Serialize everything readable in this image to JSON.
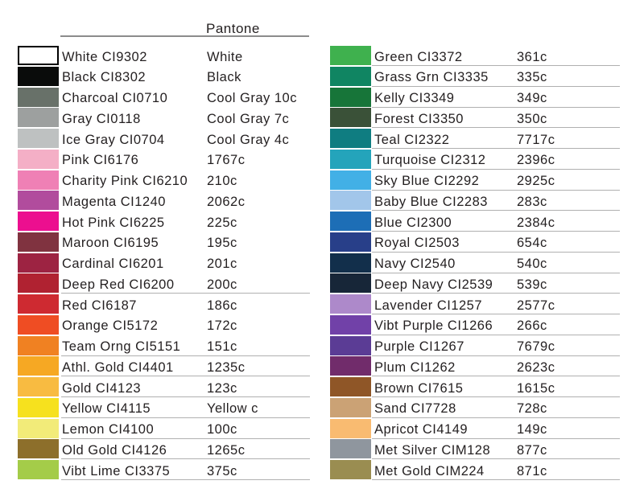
{
  "header": {
    "title": "Pantone"
  },
  "columns": [
    {
      "side": "left",
      "rows": [
        {
          "name": "White",
          "code": "CI9302",
          "pantone": "White",
          "hex": "#ffffff",
          "bordered": true,
          "underline": false
        },
        {
          "name": "Black",
          "code": "CI8302",
          "pantone": "Black",
          "hex": "#0a0c0b",
          "underline": false
        },
        {
          "name": "Charcoal",
          "code": "CI0710",
          "pantone": "Cool Gray 10c",
          "hex": "#687169",
          "underline": false
        },
        {
          "name": "Gray",
          "code": "CI0118",
          "pantone": "Cool Gray 7c",
          "hex": "#9da09f",
          "underline": false
        },
        {
          "name": "Ice Gray",
          "code": "CI0704",
          "pantone": "Cool Gray 4c",
          "hex": "#bec1c1",
          "underline": false
        },
        {
          "name": "Pink",
          "code": "CI6176",
          "pantone": "1767c",
          "hex": "#f4afc6",
          "underline": false
        },
        {
          "name": "Charity Pink",
          "code": "CI6210",
          "pantone": "210c",
          "hex": "#ef80b5",
          "underline": false
        },
        {
          "name": "Magenta",
          "code": "CI1240",
          "pantone": "2062c",
          "hex": "#b14c9d",
          "underline": false
        },
        {
          "name": "Hot Pink",
          "code": "CI6225",
          "pantone": "225c",
          "hex": "#ec0f8f",
          "underline": false
        },
        {
          "name": "Maroon",
          "code": "CI6195",
          "pantone": "195c",
          "hex": "#803340",
          "underline": false
        },
        {
          "name": "Cardinal",
          "code": "CI6201",
          "pantone": "201c",
          "hex": "#9d2342",
          "underline": false
        },
        {
          "name": "Deep Red",
          "code": "CI6200",
          "pantone": "200c",
          "hex": "#b02231",
          "underline": true
        },
        {
          "name": "Red",
          "code": "CI6187",
          "pantone": "186c",
          "hex": "#ce2a31",
          "underline": false
        },
        {
          "name": "Orange",
          "code": "CI5172",
          "pantone": "172c",
          "hex": "#ef4d23",
          "underline": false
        },
        {
          "name": "Team Orng",
          "code": "CI5151",
          "pantone": "151c",
          "hex": "#f08122",
          "underline": true
        },
        {
          "name": "Athl. Gold",
          "code": "CI4401",
          "pantone": "1235c",
          "hex": "#f6a823",
          "underline": true
        },
        {
          "name": "Gold",
          "code": "CI4123",
          "pantone": "123c",
          "hex": "#f8bb41",
          "underline": true
        },
        {
          "name": "Yellow",
          "code": "CI4115",
          "pantone": "Yellow c",
          "hex": "#f6e11e",
          "underline": true
        },
        {
          "name": "Lemon",
          "code": "CI4100",
          "pantone": "100c",
          "hex": "#f2eb79",
          "underline": true
        },
        {
          "name": "Old Gold",
          "code": "CI4126",
          "pantone": "1265c",
          "hex": "#8d6f2b",
          "underline": true
        },
        {
          "name": "Vibt Lime",
          "code": "CI3375",
          "pantone": "375c",
          "hex": "#a4cc49",
          "underline": true
        }
      ]
    },
    {
      "side": "right",
      "rows": [
        {
          "name": "Green",
          "code": "CI3372",
          "pantone": "361c",
          "hex": "#3fb14e",
          "underline": true
        },
        {
          "name": "Grass Grn",
          "code": "CI3335",
          "pantone": "335c",
          "hex": "#108562",
          "underline": true
        },
        {
          "name": "Kelly",
          "code": "CI3349",
          "pantone": "349c",
          "hex": "#177539",
          "underline": true
        },
        {
          "name": "Forest",
          "code": "CI3350",
          "pantone": "350c",
          "hex": "#3a5138",
          "underline": true
        },
        {
          "name": "Teal",
          "code": "CI2322",
          "pantone": "7717c",
          "hex": "#0f7d81",
          "underline": true
        },
        {
          "name": "Turquoise",
          "code": "CI2312",
          "pantone": "2396c",
          "hex": "#24a4bb",
          "underline": true
        },
        {
          "name": "Sky Blue",
          "code": "CI2292",
          "pantone": "2925c",
          "hex": "#42b0e6",
          "underline": true
        },
        {
          "name": "Baby Blue",
          "code": "CI2283",
          "pantone": "283c",
          "hex": "#a2c6ea",
          "underline": true
        },
        {
          "name": "Blue",
          "code": "CI2300",
          "pantone": "2384c",
          "hex": "#1d6eb6",
          "underline": true
        },
        {
          "name": "Royal",
          "code": "CI2503",
          "pantone": "654c",
          "hex": "#283f89",
          "underline": true
        },
        {
          "name": "Navy",
          "code": "CI2540",
          "pantone": "540c",
          "hex": "#122f4b",
          "underline": true
        },
        {
          "name": "Deep Navy",
          "code": "CI2539",
          "pantone": "539c",
          "hex": "#172638",
          "underline": true
        },
        {
          "name": "Lavender",
          "code": "CI1257",
          "pantone": "2577c",
          "hex": "#ad89ca",
          "underline": true
        },
        {
          "name": "Vibt Purple",
          "code": "CI1266",
          "pantone": "266c",
          "hex": "#7141a8",
          "underline": true
        },
        {
          "name": "Purple",
          "code": "CI1267",
          "pantone": "7679c",
          "hex": "#5b3c95",
          "underline": true
        },
        {
          "name": "Plum",
          "code": "CI1262",
          "pantone": "2623c",
          "hex": "#712c6b",
          "underline": true
        },
        {
          "name": "Brown",
          "code": "CI7615",
          "pantone": "1615c",
          "hex": "#8f5627",
          "underline": true
        },
        {
          "name": "Sand",
          "code": "CI7728",
          "pantone": "728c",
          "hex": "#cba275",
          "underline": true
        },
        {
          "name": "Apricot",
          "code": "CI4149",
          "pantone": "149c",
          "hex": "#f9bb71",
          "underline": true
        },
        {
          "name": "Met Silver",
          "code": "CIM128",
          "pantone": "877c",
          "hex": "#8f969e",
          "underline": true
        },
        {
          "name": "Met Gold",
          "code": "CIM224",
          "pantone": "871c",
          "hex": "#9a8d51",
          "underline": true
        }
      ]
    }
  ]
}
